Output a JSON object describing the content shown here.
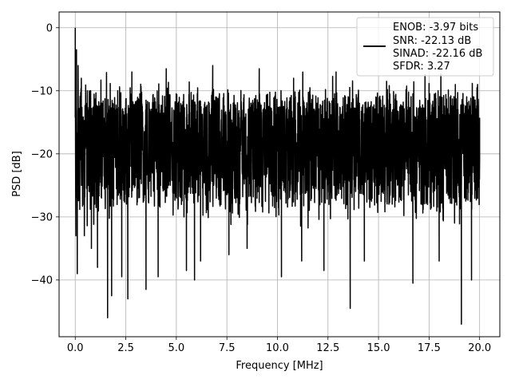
{
  "chart_data": {
    "type": "line",
    "title": "",
    "xlabel": "Frequency [MHz]",
    "ylabel": "PSD [dB]",
    "xlim": [
      -0.8,
      21.0
    ],
    "ylim": [
      -49.0,
      2.5
    ],
    "xticks": [
      0.0,
      2.5,
      5.0,
      7.5,
      10.0,
      12.5,
      15.0,
      17.5,
      20.0
    ],
    "xtick_labels": [
      "0.0",
      "2.5",
      "5.0",
      "7.5",
      "10.0",
      "12.5",
      "15.0",
      "17.5",
      "20.0"
    ],
    "yticks": [
      0,
      -10,
      -20,
      -30,
      -40
    ],
    "ytick_labels": [
      "0",
      "−10",
      "−20",
      "−30",
      "−40"
    ],
    "grid": true,
    "legend_position": "top-right",
    "series": [
      {
        "color": "#000000",
        "description": "dense noise-like PSD trace from 0 to 20 MHz, mostly between -30 and -10 dB, peak 0 dB at 0 MHz",
        "points": [
          [
            0.0,
            0.0
          ],
          [
            0.03,
            -33.0
          ],
          [
            0.06,
            -3.5
          ],
          [
            0.1,
            -39.0
          ],
          [
            0.14,
            -6.0
          ],
          [
            0.2,
            -27.0
          ],
          [
            0.3,
            -8.0
          ],
          [
            0.45,
            -33.0
          ],
          [
            0.6,
            -10.0
          ],
          [
            0.8,
            -35.0
          ],
          [
            1.0,
            -13.0
          ],
          [
            1.1,
            -38.0
          ],
          [
            1.6,
            -46.0
          ],
          [
            1.8,
            -42.5
          ],
          [
            2.1,
            -10.0
          ],
          [
            2.3,
            -39.5
          ],
          [
            2.6,
            -43.0
          ],
          [
            2.8,
            -7.0
          ],
          [
            3.5,
            -41.5
          ],
          [
            4.1,
            -39.5
          ],
          [
            4.5,
            -6.5
          ],
          [
            5.5,
            -38.5
          ],
          [
            5.9,
            -40.0
          ],
          [
            6.2,
            -37.0
          ],
          [
            6.8,
            -6.0
          ],
          [
            7.6,
            -36.0
          ],
          [
            8.5,
            -35.0
          ],
          [
            9.1,
            -6.5
          ],
          [
            10.2,
            -39.5
          ],
          [
            10.8,
            -8.0
          ],
          [
            11.2,
            -37.0
          ],
          [
            12.3,
            -38.5
          ],
          [
            12.9,
            -7.0
          ],
          [
            13.6,
            -44.5
          ],
          [
            14.3,
            -37.0
          ],
          [
            15.4,
            -8.5
          ],
          [
            16.7,
            -40.5
          ],
          [
            17.3,
            -7.5
          ],
          [
            18.0,
            -37.0
          ],
          [
            18.8,
            -9.0
          ],
          [
            19.1,
            -47.0
          ],
          [
            19.6,
            -40.0
          ],
          [
            19.9,
            -9.0
          ],
          [
            20.0,
            -21.0
          ]
        ]
      }
    ],
    "legend": {
      "lines": [
        "ENOB: -3.97 bits",
        "SNR: -22.13 dB",
        "SINAD: -22.16 dB",
        "SFDR: 3.27"
      ]
    }
  }
}
